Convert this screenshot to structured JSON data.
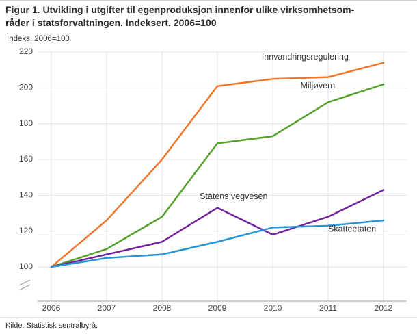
{
  "title": {
    "line1": "Figur 1. Utvikling i utgifter til egenproduksjon innenfor ulike virksomhetsom-",
    "line2": "råder i statsforvaltningen. Indeksert. 2006=100"
  },
  "source": "Kilde: Statistisk sentralbyrå.",
  "chart_data": {
    "type": "line",
    "title": "Figur 1. Utvikling i utgifter til egenproduksjon innenfor ulike virksomhetsområder i statsforvaltningen. Indeksert. 2006=100",
    "ylabel": "Indeks. 2006=100",
    "xlabel": "",
    "x": [
      2006,
      2007,
      2008,
      2009,
      2010,
      2011,
      2012
    ],
    "y_ticks": [
      100,
      120,
      140,
      160,
      180,
      200,
      220
    ],
    "ylim": [
      100,
      220
    ],
    "axis_break_below_min": true,
    "grid": true,
    "legend_position": "inline-labels",
    "colors": {
      "grid": "#e0e0e0",
      "axis": "#999999"
    },
    "series": [
      {
        "name": "Innvandringsregulering",
        "color": "#f0752b",
        "values": [
          100,
          126,
          160,
          201,
          205,
          206,
          214
        ],
        "label": {
          "x": 2009.8,
          "y": 217
        }
      },
      {
        "name": "Miljøvern",
        "color": "#55a02c",
        "values": [
          100,
          110,
          128,
          169,
          173,
          192,
          202
        ],
        "label": {
          "x": 2010.5,
          "y": 201
        }
      },
      {
        "name": "Statens vegvesen",
        "color": "#74219e",
        "values": [
          100,
          107,
          114,
          133,
          118,
          128,
          143
        ],
        "label": {
          "x": 2008.68,
          "y": 139
        }
      },
      {
        "name": "Skatteetaten",
        "color": "#2596d2",
        "values": [
          100,
          105,
          107,
          114,
          122,
          123,
          126
        ],
        "label": {
          "x": 2011.0,
          "y": 121
        }
      }
    ]
  }
}
